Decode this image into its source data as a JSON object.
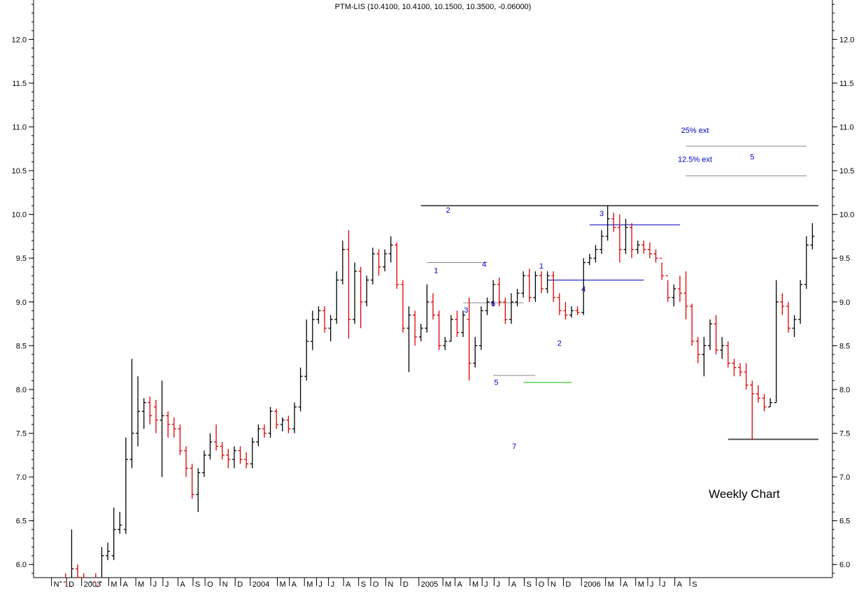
{
  "chart_data": {
    "type": "ohlc",
    "title": "PTM-LIS (10.4100, 10.4100, 10.1500, 10.3500, -0.06000)",
    "caption": "Weekly Chart",
    "ylim": [
      5.85,
      12.45
    ],
    "xlim": [
      -1,
      127
    ],
    "yticks_major": [
      6.0,
      6.5,
      7.0,
      7.5,
      8.0,
      8.5,
      9.0,
      9.5,
      10.0,
      10.5,
      11.0,
      11.5,
      12.0
    ],
    "y_minor_step": 0.1,
    "grid": false,
    "colors": {
      "up": "#000000",
      "down": "#dd0000",
      "axis": "#000000",
      "label": "#0000cc",
      "line_dark": "#555555",
      "line_gray": "#888888",
      "line_blue": "#0000cc",
      "line_green": "#00bb00"
    },
    "x_tick_labels": [
      {
        "label": "N",
        "x": 0
      },
      {
        "label": "D",
        "x": 2.5
      },
      {
        "label": "2003",
        "x": 5
      },
      {
        "label": "M",
        "x": 9.5
      },
      {
        "label": "A",
        "x": 11.5
      },
      {
        "label": "M",
        "x": 14
      },
      {
        "label": "J",
        "x": 16.5
      },
      {
        "label": "J",
        "x": 18.5
      },
      {
        "label": "A",
        "x": 21
      },
      {
        "label": "S",
        "x": 23.5
      },
      {
        "label": "O",
        "x": 25.5
      },
      {
        "label": "N",
        "x": 28
      },
      {
        "label": "D",
        "x": 30.5
      },
      {
        "label": "2004",
        "x": 33
      },
      {
        "label": "M",
        "x": 37.5
      },
      {
        "label": "A",
        "x": 39.5
      },
      {
        "label": "M",
        "x": 42
      },
      {
        "label": "J",
        "x": 44
      },
      {
        "label": "J",
        "x": 46
      },
      {
        "label": "A",
        "x": 48.5
      },
      {
        "label": "S",
        "x": 51
      },
      {
        "label": "O",
        "x": 53
      },
      {
        "label": "N",
        "x": 55.5
      },
      {
        "label": "D",
        "x": 58
      },
      {
        "label": "2005",
        "x": 61
      },
      {
        "label": "M",
        "x": 65
      },
      {
        "label": "A",
        "x": 67
      },
      {
        "label": "M",
        "x": 69.5
      },
      {
        "label": "J",
        "x": 71.5
      },
      {
        "label": "J",
        "x": 73.5
      },
      {
        "label": "A",
        "x": 76
      },
      {
        "label": "S",
        "x": 78.5
      },
      {
        "label": "O",
        "x": 80.5
      },
      {
        "label": "N",
        "x": 82.5
      },
      {
        "label": "D",
        "x": 85
      },
      {
        "label": "2006",
        "x": 88
      },
      {
        "label": "M",
        "x": 92
      },
      {
        "label": "A",
        "x": 94.5
      },
      {
        "label": "M",
        "x": 97
      },
      {
        "label": "J",
        "x": 99
      },
      {
        "label": "J",
        "x": 101
      },
      {
        "label": "A",
        "x": 103.5
      },
      {
        "label": "S",
        "x": 106
      }
    ],
    "bars": [
      [
        0,
        5.6,
        5.8,
        5.5,
        5.7
      ],
      [
        1,
        5.7,
        5.85,
        5.6,
        5.8
      ],
      [
        2,
        5.8,
        5.9,
        5.65,
        5.75
      ],
      [
        3,
        5.75,
        6.4,
        5.7,
        5.95
      ],
      [
        4,
        5.95,
        6.0,
        5.8,
        5.85
      ],
      [
        5,
        5.85,
        5.9,
        5.6,
        5.7
      ],
      [
        6,
        5.7,
        5.85,
        5.6,
        5.8
      ],
      [
        7,
        5.8,
        5.9,
        5.7,
        5.75
      ],
      [
        8,
        5.8,
        6.2,
        5.75,
        6.1
      ],
      [
        9,
        6.1,
        6.25,
        6.05,
        6.15
      ],
      [
        10,
        6.1,
        6.65,
        6.05,
        6.4
      ],
      [
        11,
        6.4,
        6.6,
        6.35,
        6.45
      ],
      [
        12,
        6.4,
        7.45,
        6.35,
        7.2
      ],
      [
        13,
        7.2,
        8.35,
        7.1,
        7.5
      ],
      [
        14,
        7.5,
        8.15,
        7.35,
        7.75
      ],
      [
        15,
        7.75,
        7.9,
        7.55,
        7.85
      ],
      [
        16,
        7.85,
        7.92,
        7.6,
        7.7
      ],
      [
        17,
        7.8,
        7.88,
        7.5,
        7.65
      ],
      [
        18,
        7.65,
        8.1,
        7.0,
        7.7
      ],
      [
        19,
        7.7,
        7.75,
        7.45,
        7.6
      ],
      [
        20,
        7.6,
        7.68,
        7.45,
        7.55
      ],
      [
        21,
        7.55,
        7.6,
        7.25,
        7.3
      ],
      [
        22,
        7.3,
        7.35,
        7.0,
        7.1
      ],
      [
        23,
        7.1,
        7.15,
        6.75,
        6.8
      ],
      [
        24,
        6.8,
        7.1,
        6.6,
        7.05
      ],
      [
        25,
        7.05,
        7.3,
        7.0,
        7.25
      ],
      [
        26,
        7.25,
        7.5,
        7.2,
        7.4
      ],
      [
        27,
        7.4,
        7.6,
        7.3,
        7.35
      ],
      [
        28,
        7.35,
        7.4,
        7.2,
        7.25
      ],
      [
        29,
        7.25,
        7.32,
        7.1,
        7.2
      ],
      [
        30,
        7.2,
        7.35,
        7.1,
        7.3
      ],
      [
        31,
        7.3,
        7.35,
        7.15,
        7.2
      ],
      [
        32,
        7.2,
        7.28,
        7.1,
        7.15
      ],
      [
        33,
        7.15,
        7.45,
        7.1,
        7.4
      ],
      [
        34,
        7.4,
        7.6,
        7.35,
        7.55
      ],
      [
        35,
        7.55,
        7.6,
        7.45,
        7.5
      ],
      [
        36,
        7.5,
        7.8,
        7.45,
        7.75
      ],
      [
        37,
        7.75,
        7.78,
        7.55,
        7.6
      ],
      [
        38,
        7.6,
        7.68,
        7.52,
        7.65
      ],
      [
        39,
        7.65,
        7.7,
        7.5,
        7.55
      ],
      [
        40,
        7.55,
        7.85,
        7.5,
        7.8
      ],
      [
        41,
        7.8,
        8.25,
        7.75,
        8.15
      ],
      [
        42,
        8.15,
        8.8,
        8.1,
        8.55
      ],
      [
        43,
        8.55,
        8.9,
        8.45,
        8.8
      ],
      [
        44,
        8.8,
        8.95,
        8.75,
        8.9
      ],
      [
        45,
        8.9,
        8.95,
        8.65,
        8.7
      ],
      [
        46,
        8.7,
        8.85,
        8.55,
        8.8
      ],
      [
        47,
        8.8,
        9.35,
        8.75,
        9.25
      ],
      [
        48,
        9.25,
        9.7,
        9.2,
        9.6
      ],
      [
        49,
        9.6,
        9.82,
        8.58,
        8.8
      ],
      [
        50,
        8.8,
        9.45,
        8.75,
        9.35
      ],
      [
        51,
        9.35,
        9.4,
        8.7,
        9.0
      ],
      [
        52,
        9.0,
        9.3,
        8.95,
        9.25
      ],
      [
        53,
        9.25,
        9.62,
        9.2,
        9.55
      ],
      [
        54,
        9.55,
        9.6,
        9.3,
        9.4
      ],
      [
        55,
        9.4,
        9.6,
        9.35,
        9.55
      ],
      [
        56,
        9.55,
        9.75,
        9.45,
        9.65
      ],
      [
        57,
        9.65,
        9.68,
        9.15,
        9.2
      ],
      [
        58,
        9.2,
        9.25,
        8.65,
        8.7
      ],
      [
        59,
        8.7,
        8.95,
        8.2,
        8.85
      ],
      [
        60,
        8.85,
        8.9,
        8.5,
        8.6
      ],
      [
        61,
        8.6,
        8.75,
        8.55,
        8.7
      ],
      [
        62,
        8.7,
        9.2,
        8.65,
        9.0
      ],
      [
        63,
        9.0,
        9.1,
        8.8,
        8.85
      ],
      [
        64,
        8.85,
        8.9,
        8.45,
        8.5
      ],
      [
        65,
        8.5,
        8.6,
        8.45,
        8.55
      ],
      [
        66,
        8.55,
        8.85,
        8.55,
        8.8
      ],
      [
        67,
        8.8,
        8.9,
        8.6,
        8.65
      ],
      [
        68,
        8.65,
        8.9,
        8.6,
        8.85
      ],
      [
        69,
        8.8,
        9.05,
        8.1,
        8.3
      ],
      [
        70,
        8.3,
        8.6,
        8.25,
        8.5
      ],
      [
        71,
        8.5,
        8.95,
        8.45,
        8.9
      ],
      [
        72,
        8.9,
        9.05,
        8.85,
        9.0
      ],
      [
        73,
        9.0,
        9.25,
        8.95,
        9.2
      ],
      [
        74,
        9.2,
        9.28,
        8.95,
        9.0
      ],
      [
        75,
        9.0,
        9.05,
        8.75,
        8.8
      ],
      [
        76,
        8.8,
        9.1,
        8.75,
        9.0
      ],
      [
        77,
        9.0,
        9.15,
        8.95,
        9.1
      ],
      [
        78,
        9.1,
        9.35,
        9.05,
        9.3
      ],
      [
        79,
        9.3,
        9.38,
        9.0,
        9.05
      ],
      [
        80,
        9.05,
        9.35,
        9.0,
        9.3
      ],
      [
        81,
        9.3,
        9.35,
        9.1,
        9.15
      ],
      [
        82,
        9.15,
        9.35,
        9.1,
        9.3
      ],
      [
        83,
        9.3,
        9.35,
        9.0,
        9.05
      ],
      [
        84,
        9.05,
        9.1,
        8.85,
        8.9
      ],
      [
        85,
        8.9,
        9.0,
        8.8,
        8.85
      ],
      [
        86,
        8.85,
        8.95,
        8.82,
        8.9
      ],
      [
        87,
        8.9,
        8.95,
        8.85,
        8.88
      ],
      [
        88,
        8.88,
        9.5,
        8.85,
        9.45
      ],
      [
        89,
        9.45,
        9.55,
        9.42,
        9.5
      ],
      [
        90,
        9.5,
        9.65,
        9.45,
        9.6
      ],
      [
        91,
        9.6,
        9.82,
        9.55,
        9.75
      ],
      [
        92,
        9.75,
        10.1,
        9.7,
        9.95
      ],
      [
        93,
        9.95,
        10.02,
        9.8,
        9.85
      ],
      [
        94,
        9.85,
        10.0,
        9.45,
        9.6
      ],
      [
        95,
        9.6,
        9.95,
        9.55,
        9.85
      ],
      [
        96,
        9.85,
        9.9,
        9.5,
        9.6
      ],
      [
        97,
        9.6,
        9.7,
        9.55,
        9.65
      ],
      [
        98,
        9.65,
        9.7,
        9.55,
        9.6
      ],
      [
        99,
        9.6,
        9.68,
        9.5,
        9.55
      ],
      [
        100,
        9.55,
        9.6,
        9.45,
        9.5
      ],
      [
        101,
        9.5,
        9.45,
        9.25,
        9.3
      ],
      [
        102,
        9.3,
        9.25,
        9.0,
        9.05
      ],
      [
        103,
        9.05,
        9.2,
        8.95,
        9.15
      ],
      [
        104,
        9.15,
        9.3,
        9.0,
        9.1
      ],
      [
        105,
        9.1,
        9.35,
        8.8,
        8.95
      ],
      [
        106,
        8.95,
        8.98,
        8.5,
        8.55
      ],
      [
        107,
        8.55,
        8.6,
        8.3,
        8.4
      ],
      [
        108,
        8.4,
        8.6,
        8.15,
        8.5
      ],
      [
        109,
        8.5,
        8.8,
        8.45,
        8.75
      ],
      [
        110,
        8.75,
        8.85,
        8.4,
        8.45
      ],
      [
        111,
        8.45,
        8.6,
        8.35,
        8.5
      ],
      [
        112,
        8.5,
        8.55,
        8.25,
        8.3
      ],
      [
        113,
        8.3,
        8.35,
        8.15,
        8.25
      ],
      [
        114,
        8.25,
        8.3,
        8.15,
        8.2
      ],
      [
        115,
        8.2,
        8.3,
        8.0,
        8.05
      ],
      [
        116,
        8.05,
        8.1,
        7.43,
        7.95
      ],
      [
        117,
        7.95,
        8.05,
        7.85,
        7.9
      ],
      [
        118,
        7.9,
        7.95,
        7.75,
        7.8
      ],
      [
        119,
        7.8,
        7.9,
        7.8,
        7.85
      ],
      [
        120,
        7.85,
        9.25,
        7.85,
        9.0
      ],
      [
        121,
        9.0,
        9.1,
        8.85,
        8.95
      ],
      [
        122,
        8.95,
        9.0,
        8.65,
        8.7
      ],
      [
        123,
        8.7,
        8.85,
        8.6,
        8.8
      ],
      [
        124,
        8.8,
        9.25,
        8.75,
        9.2
      ],
      [
        125,
        9.2,
        9.75,
        9.15,
        9.65
      ],
      [
        126,
        9.65,
        9.9,
        9.6,
        9.75
      ]
    ],
    "hlines": [
      {
        "y": 10.1,
        "x0": 61,
        "x1": 127,
        "color": "#555555",
        "width": 2
      },
      {
        "y": 7.43,
        "x0": 112,
        "x1": 127,
        "color": "#555555",
        "width": 2
      },
      {
        "y": 10.78,
        "x0": 105,
        "x1": 125,
        "color": "#888888",
        "width": 1
      },
      {
        "y": 10.44,
        "x0": 105,
        "x1": 125,
        "color": "#888888",
        "width": 1
      },
      {
        "y": 9.45,
        "x0": 62,
        "x1": 72,
        "color": "#888888",
        "width": 1
      },
      {
        "y": 8.99,
        "x0": 68,
        "x1": 78,
        "color": "#888888",
        "width": 1
      },
      {
        "y": 8.16,
        "x0": 73,
        "x1": 80,
        "color": "#888888",
        "width": 1
      },
      {
        "y": 8.08,
        "x0": 78,
        "x1": 86,
        "color": "#00bb00",
        "width": 1
      },
      {
        "y": 9.25,
        "x0": 82,
        "x1": 98,
        "color": "#0000cc",
        "width": 1
      },
      {
        "y": 9.88,
        "x0": 89,
        "x1": 104,
        "color": "#0000cc",
        "width": 1
      }
    ],
    "annotations": [
      {
        "text": "25% ext",
        "x": 106.5,
        "y": 10.93
      },
      {
        "text": "12.5% ext",
        "x": 106.5,
        "y": 10.6
      },
      {
        "text": "5",
        "x": 116,
        "y": 10.63
      },
      {
        "text": "2",
        "x": 65.5,
        "y": 10.02
      },
      {
        "text": "1",
        "x": 63.5,
        "y": 9.33
      },
      {
        "text": "4",
        "x": 71.5,
        "y": 9.4
      },
      {
        "text": "3",
        "x": 68.5,
        "y": 8.88
      },
      {
        "text": "6",
        "x": 73,
        "y": 8.95
      },
      {
        "text": "5",
        "x": 73.5,
        "y": 8.05
      },
      {
        "text": "7",
        "x": 76.5,
        "y": 7.32
      },
      {
        "text": "1",
        "x": 81,
        "y": 9.38
      },
      {
        "text": "2",
        "x": 84,
        "y": 8.5
      },
      {
        "text": "4",
        "x": 88,
        "y": 9.12
      },
      {
        "text": "3",
        "x": 91,
        "y": 9.98
      }
    ]
  }
}
